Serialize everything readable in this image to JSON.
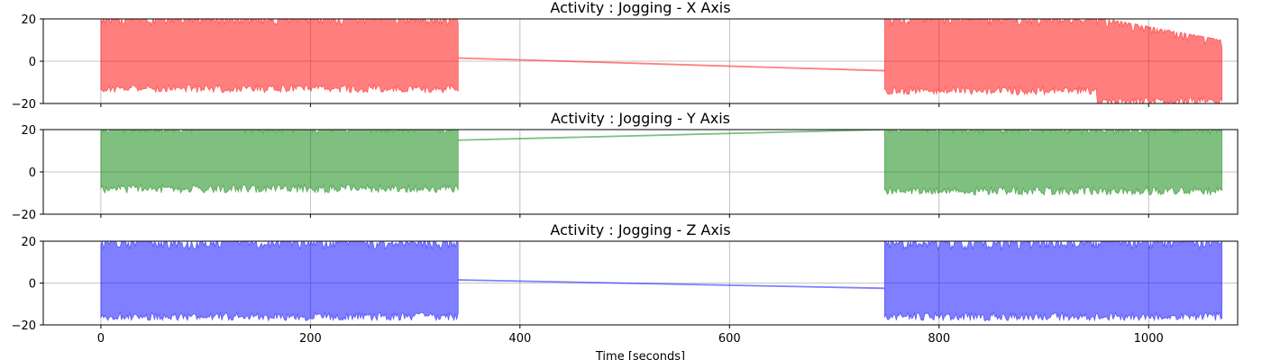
{
  "chart_data": [
    {
      "type": "line",
      "title": "Activity : Jogging - X Axis",
      "color": "#ff0000",
      "xlim": [
        -55,
        1085
      ],
      "ylim": [
        -20,
        20
      ],
      "yticks": [
        "20",
        "0",
        "−20"
      ],
      "ytick_values": [
        20,
        0,
        -20
      ],
      "xticks": [],
      "xtick_values": [
        0,
        200,
        400,
        600,
        800,
        1000
      ],
      "grid": true,
      "segments": [
        {
          "x_start": 0,
          "x_end": 341,
          "upper": 19,
          "lower": -14
        },
        {
          "x_start": 748,
          "x_end": 1070,
          "upper": 19,
          "lower": -15,
          "note_taper": "upper decreases to 8 and lower reaches -20 after x=960"
        }
      ],
      "bridge": {
        "x": [
          341,
          748
        ],
        "y": [
          1.5,
          -4.5
        ]
      }
    },
    {
      "type": "line",
      "title": "Activity : Jogging - Y Axis",
      "color": "#008000",
      "xlim": [
        -55,
        1085
      ],
      "ylim": [
        -20,
        20
      ],
      "yticks": [
        "20",
        "0",
        "−20"
      ],
      "ytick_values": [
        20,
        0,
        -20
      ],
      "xticks": [],
      "xtick_values": [
        0,
        200,
        400,
        600,
        800,
        1000
      ],
      "grid": true,
      "segments": [
        {
          "x_start": 0,
          "x_end": 341,
          "upper": 20,
          "lower": -9
        },
        {
          "x_start": 748,
          "x_end": 1070,
          "upper": 20,
          "lower": -10
        }
      ],
      "bridge": {
        "x": [
          341,
          748
        ],
        "y": [
          15,
          20
        ]
      }
    },
    {
      "type": "line",
      "title": "Activity : Jogging - Z Axis",
      "color": "#0000ff",
      "xlim": [
        -55,
        1085
      ],
      "ylim": [
        -20,
        20
      ],
      "yticks": [
        "20",
        "0",
        "−20"
      ],
      "ytick_values": [
        20,
        0,
        -20
      ],
      "xticks": [
        "0",
        "200",
        "400",
        "600",
        "800",
        "1000"
      ],
      "xtick_values": [
        0,
        200,
        400,
        600,
        800,
        1000
      ],
      "xlabel": "Time [seconds]",
      "grid": true,
      "segments": [
        {
          "x_start": 0,
          "x_end": 341,
          "upper": 18,
          "lower": -17
        },
        {
          "x_start": 748,
          "x_end": 1070,
          "upper": 18,
          "lower": -17
        }
      ],
      "bridge": {
        "x": [
          341,
          748
        ],
        "y": [
          1.5,
          -2.5
        ]
      }
    }
  ]
}
